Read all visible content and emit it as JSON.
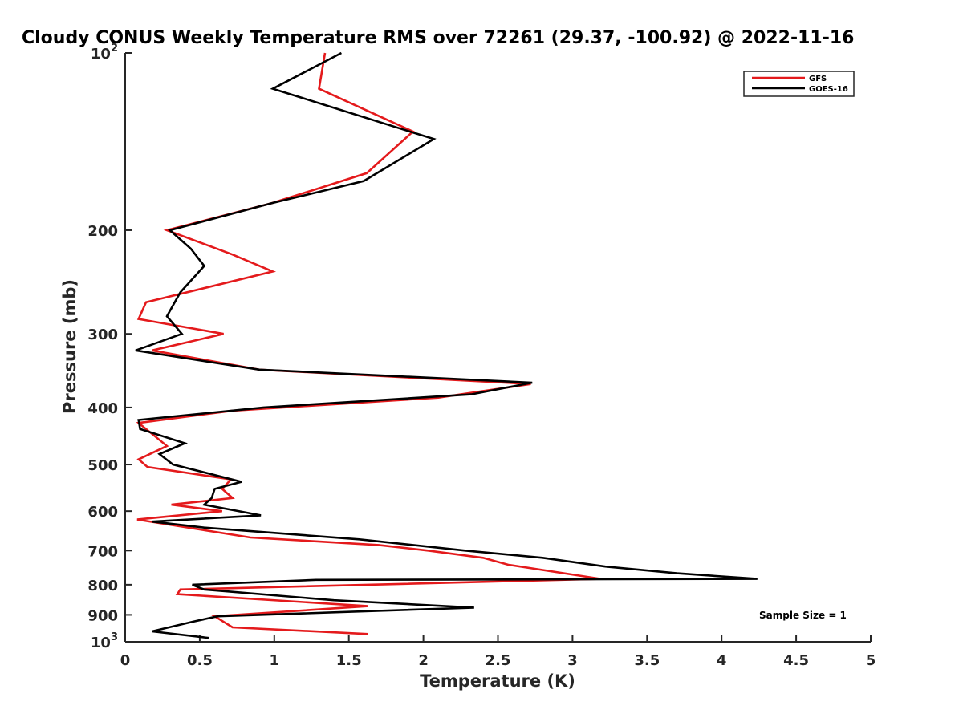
{
  "chart_data": {
    "type": "line",
    "title": "Cloudy CONUS Weekly Temperature RMS over 72261 (29.37, -100.92) @ 2022-11-16",
    "xlabel": "Temperature (K)",
    "ylabel": "Pressure (mb)",
    "xlim": [
      0,
      5
    ],
    "ylim": [
      1000,
      100
    ],
    "yscale": "log",
    "y_reversed": true,
    "x_ticks": [
      "0",
      "0.5",
      "1",
      "1.5",
      "2",
      "2.5",
      "3",
      "3.5",
      "4",
      "4.5",
      "5"
    ],
    "y_ticks": [
      {
        "value": 100,
        "base": "10",
        "exp": "2"
      },
      {
        "value": 200,
        "label": "200"
      },
      {
        "value": 300,
        "label": "300"
      },
      {
        "value": 400,
        "label": "400"
      },
      {
        "value": 500,
        "label": "500"
      },
      {
        "value": 600,
        "label": "600"
      },
      {
        "value": 700,
        "label": "700"
      },
      {
        "value": 800,
        "label": "800"
      },
      {
        "value": 900,
        "label": "900"
      },
      {
        "value": 1000,
        "base": "10",
        "exp": "3"
      }
    ],
    "grid": false,
    "legend_position": "top-right",
    "annotation": "Sample Size = 1",
    "series": [
      {
        "name": "GFS",
        "color": "#e41a1c",
        "points": [
          [
            1.34,
            100
          ],
          [
            1.3,
            115
          ],
          [
            1.93,
            136
          ],
          [
            1.62,
            160
          ],
          [
            0.98,
            180
          ],
          [
            0.28,
            200
          ],
          [
            0.72,
            220
          ],
          [
            0.99,
            235
          ],
          [
            0.14,
            265
          ],
          [
            0.09,
            283
          ],
          [
            0.66,
            300
          ],
          [
            0.18,
            320
          ],
          [
            0.9,
            345
          ],
          [
            2.72,
            365
          ],
          [
            2.1,
            385
          ],
          [
            0.72,
            405
          ],
          [
            0.09,
            425
          ],
          [
            0.28,
            465
          ],
          [
            0.09,
            490
          ],
          [
            0.15,
            505
          ],
          [
            0.71,
            530
          ],
          [
            0.65,
            550
          ],
          [
            0.72,
            570
          ],
          [
            0.31,
            585
          ],
          [
            0.65,
            600
          ],
          [
            0.08,
            620
          ],
          [
            0.84,
            665
          ],
          [
            1.7,
            685
          ],
          [
            2.03,
            700
          ],
          [
            2.4,
            720
          ],
          [
            2.57,
            740
          ],
          [
            3.19,
            782
          ],
          [
            0.37,
            815
          ],
          [
            0.35,
            830
          ],
          [
            1.63,
            870
          ],
          [
            0.6,
            905
          ],
          [
            0.72,
            945
          ],
          [
            1.63,
            970
          ]
        ]
      },
      {
        "name": "GOES-16",
        "color": "#000000",
        "points": [
          [
            1.45,
            100
          ],
          [
            0.99,
            115
          ],
          [
            2.07,
            140
          ],
          [
            1.6,
            165
          ],
          [
            0.98,
            180
          ],
          [
            0.3,
            200
          ],
          [
            0.44,
            215
          ],
          [
            0.53,
            230
          ],
          [
            0.37,
            255
          ],
          [
            0.28,
            280
          ],
          [
            0.38,
            300
          ],
          [
            0.07,
            320
          ],
          [
            0.9,
            345
          ],
          [
            2.73,
            363
          ],
          [
            2.32,
            380
          ],
          [
            0.93,
            400
          ],
          [
            0.09,
            420
          ],
          [
            0.1,
            435
          ],
          [
            0.4,
            460
          ],
          [
            0.23,
            480
          ],
          [
            0.32,
            500
          ],
          [
            0.78,
            535
          ],
          [
            0.6,
            550
          ],
          [
            0.58,
            570
          ],
          [
            0.53,
            585
          ],
          [
            0.91,
            610
          ],
          [
            0.18,
            625
          ],
          [
            0.53,
            640
          ],
          [
            1.57,
            670
          ],
          [
            2.28,
            700
          ],
          [
            2.8,
            720
          ],
          [
            3.22,
            745
          ],
          [
            3.7,
            765
          ],
          [
            4.24,
            782
          ],
          [
            1.28,
            785
          ],
          [
            0.45,
            800
          ],
          [
            0.53,
            815
          ],
          [
            1.4,
            850
          ],
          [
            2.34,
            875
          ],
          [
            0.62,
            905
          ],
          [
            0.45,
            925
          ],
          [
            0.18,
            960
          ],
          [
            0.56,
            985
          ]
        ]
      }
    ]
  }
}
